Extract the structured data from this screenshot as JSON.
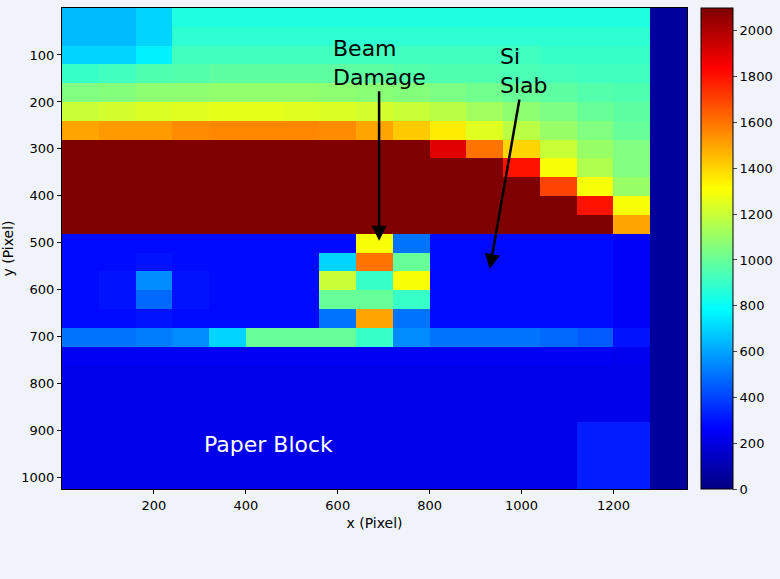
{
  "chart_data": {
    "type": "heatmap",
    "xlabel": "x (Pixel)",
    "ylabel": "y (Pixel)",
    "xlim": [
      0,
      1360
    ],
    "ylim": [
      1024,
      0
    ],
    "xticks": [
      200,
      400,
      600,
      800,
      1000,
      1200
    ],
    "yticks": [
      100,
      200,
      300,
      400,
      500,
      600,
      700,
      800,
      900,
      1000
    ],
    "x": [
      40,
      120,
      200,
      280,
      360,
      440,
      520,
      600,
      680,
      760,
      840,
      920,
      1000,
      1080,
      1160,
      1240,
      1320
    ],
    "y": [
      20,
      60,
      100,
      140,
      180,
      220,
      260,
      300,
      340,
      380,
      420,
      460,
      500,
      540,
      580,
      620,
      660,
      700,
      740,
      780,
      820,
      860,
      900,
      940,
      980,
      1020
    ],
    "z": [
      [
        650,
        650,
        700,
        850,
        850,
        850,
        850,
        850,
        850,
        850,
        850,
        850,
        850,
        850,
        850,
        850,
        60
      ],
      [
        650,
        650,
        700,
        880,
        880,
        880,
        880,
        880,
        880,
        880,
        880,
        880,
        880,
        880,
        880,
        880,
        60
      ],
      [
        700,
        700,
        760,
        920,
        920,
        920,
        920,
        920,
        920,
        920,
        920,
        920,
        920,
        900,
        900,
        900,
        60
      ],
      [
        900,
        920,
        950,
        960,
        980,
        980,
        980,
        980,
        980,
        960,
        950,
        950,
        940,
        930,
        920,
        920,
        60
      ],
      [
        1050,
        1060,
        1080,
        1080,
        1090,
        1090,
        1090,
        1080,
        1070,
        1060,
        1040,
        1020,
        1000,
        980,
        960,
        950,
        60
      ],
      [
        1200,
        1220,
        1240,
        1250,
        1260,
        1260,
        1250,
        1240,
        1220,
        1200,
        1170,
        1120,
        1080,
        1040,
        1000,
        980,
        60
      ],
      [
        1500,
        1520,
        1520,
        1550,
        1560,
        1560,
        1560,
        1550,
        1500,
        1420,
        1350,
        1250,
        1170,
        1100,
        1050,
        1000,
        60
      ],
      [
        2100,
        2100,
        2100,
        2100,
        2100,
        2100,
        2100,
        2100,
        2100,
        2100,
        1900,
        1600,
        1400,
        1200,
        1100,
        1050,
        60
      ],
      [
        2100,
        2100,
        2100,
        2100,
        2100,
        2100,
        2100,
        2100,
        2100,
        2100,
        2100,
        2100,
        1800,
        1300,
        1150,
        1050,
        60
      ],
      [
        2100,
        2100,
        2100,
        2100,
        2100,
        2100,
        2100,
        2100,
        2100,
        2100,
        2100,
        2100,
        2100,
        1700,
        1300,
        1100,
        60
      ],
      [
        2100,
        2100,
        2100,
        2100,
        2100,
        2100,
        2100,
        2100,
        2100,
        2100,
        2100,
        2100,
        2100,
        2100,
        1800,
        1300,
        60
      ],
      [
        2100,
        2100,
        2100,
        2100,
        2100,
        2100,
        2100,
        2100,
        2100,
        2100,
        2100,
        2100,
        2100,
        2100,
        2100,
        1500,
        60
      ],
      [
        280,
        280,
        280,
        280,
        280,
        280,
        280,
        280,
        1300,
        500,
        280,
        280,
        280,
        280,
        280,
        250,
        60
      ],
      [
        280,
        280,
        300,
        280,
        280,
        280,
        280,
        700,
        1600,
        1000,
        280,
        280,
        280,
        280,
        280,
        250,
        60
      ],
      [
        280,
        300,
        550,
        300,
        280,
        280,
        280,
        1200,
        900,
        1300,
        280,
        280,
        280,
        280,
        280,
        250,
        60
      ],
      [
        280,
        300,
        480,
        300,
        280,
        280,
        280,
        1000,
        1000,
        900,
        280,
        280,
        280,
        280,
        280,
        250,
        60
      ],
      [
        280,
        280,
        300,
        280,
        280,
        280,
        280,
        500,
        1500,
        500,
        280,
        280,
        280,
        280,
        280,
        250,
        60
      ],
      [
        500,
        500,
        520,
        550,
        700,
        1000,
        1000,
        1000,
        900,
        550,
        500,
        500,
        500,
        480,
        450,
        300,
        60
      ],
      [
        240,
        240,
        240,
        240,
        240,
        240,
        240,
        240,
        240,
        240,
        240,
        240,
        240,
        240,
        240,
        230,
        60
      ],
      [
        220,
        220,
        220,
        220,
        220,
        220,
        220,
        220,
        220,
        220,
        220,
        220,
        220,
        220,
        220,
        220,
        60
      ],
      [
        220,
        220,
        220,
        220,
        220,
        220,
        220,
        220,
        220,
        220,
        220,
        220,
        220,
        220,
        220,
        220,
        60
      ],
      [
        220,
        220,
        220,
        220,
        220,
        220,
        220,
        220,
        220,
        220,
        220,
        220,
        220,
        220,
        220,
        220,
        60
      ],
      [
        220,
        220,
        220,
        220,
        220,
        220,
        220,
        220,
        220,
        220,
        220,
        220,
        220,
        220,
        320,
        320,
        60
      ],
      [
        220,
        220,
        220,
        220,
        220,
        220,
        220,
        220,
        220,
        220,
        220,
        220,
        220,
        220,
        320,
        320,
        60
      ],
      [
        220,
        220,
        220,
        220,
        220,
        220,
        220,
        220,
        220,
        220,
        220,
        220,
        220,
        220,
        320,
        320,
        60
      ],
      [
        220,
        220,
        220,
        220,
        220,
        220,
        220,
        220,
        220,
        220,
        220,
        220,
        220,
        220,
        320,
        320,
        60
      ]
    ],
    "colorbar": {
      "range": [
        0,
        2100
      ],
      "ticks": [
        0,
        200,
        400,
        600,
        800,
        1000,
        1200,
        1400,
        1600,
        1800,
        2000
      ]
    },
    "annotations": [
      {
        "text": "Beam\nDamage",
        "x": 690,
        "y": 500
      },
      {
        "text": "Si\nSlab",
        "x": 930,
        "y": 560
      }
    ],
    "labels": [
      {
        "text": "Paper Block",
        "x": 450,
        "y": 930
      }
    ]
  }
}
